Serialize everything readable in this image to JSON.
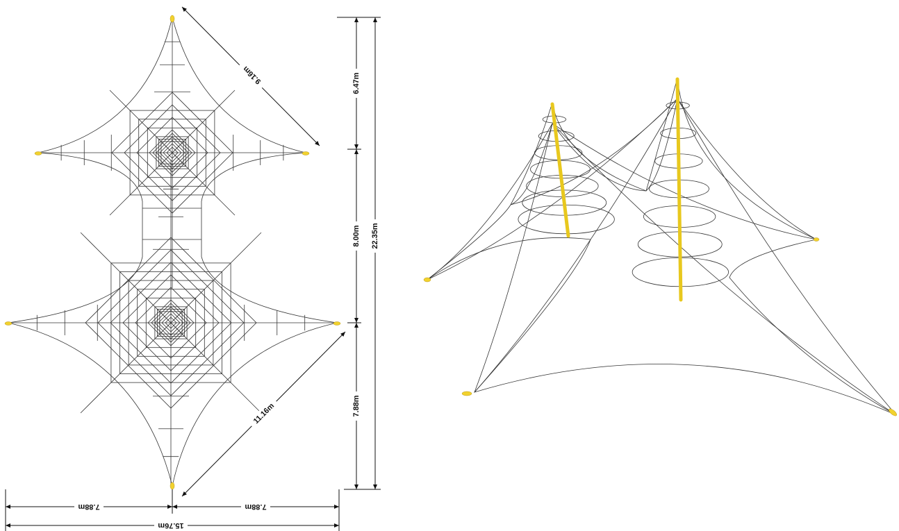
{
  "dimensions": {
    "top_diagonal": "9.16m",
    "top_arm": "6.47m",
    "middle": "8.00m",
    "total_height": "22.35m",
    "bottom_arm": "7.88m",
    "bottom_diagonal": "11.16m",
    "left_width": "7.88m",
    "right_width": "7.88m",
    "total_width": "15.76m"
  }
}
